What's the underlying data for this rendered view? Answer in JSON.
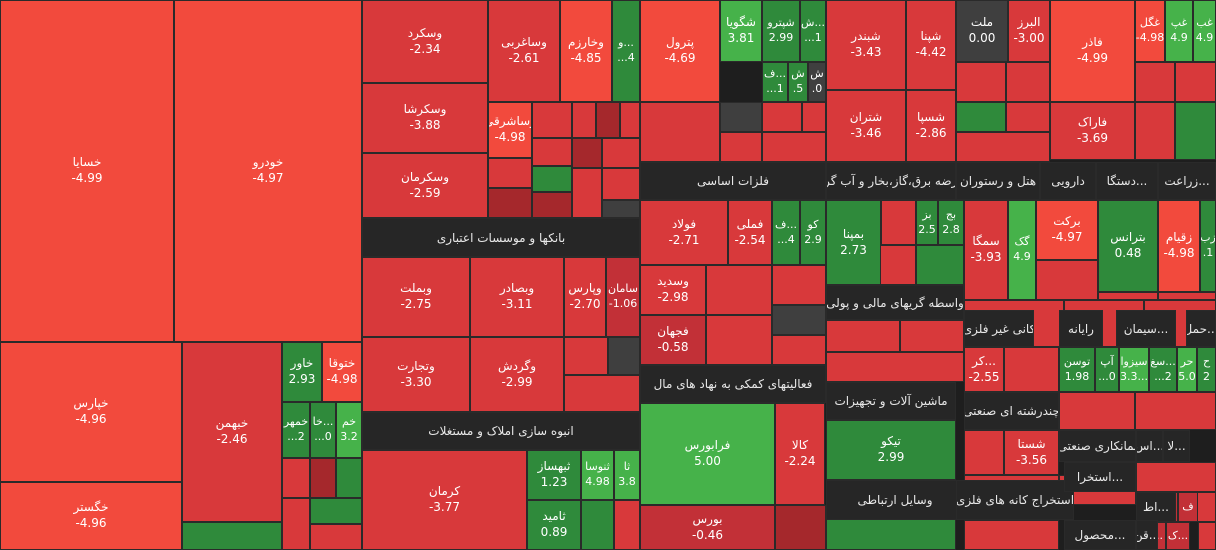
{
  "chart_data": {
    "type": "heatmap",
    "colors": {
      "strong_neg": "#f24a3d",
      "neg": "#d8393b",
      "mid_neg": "#c23037",
      "dark_neg": "#a5282c",
      "neutral": "#3f3f3f",
      "pos": "#2f8a3b",
      "strong_pos": "#46b24a",
      "header": "#262626"
    },
    "sectors": [
      "بانکها و موسسات اعتباری",
      "فلزات اساسی",
      "انبوه سازی املاک و مستغلات",
      "فعالیتهای کمکی به نهاد های مال",
      "ماشین آلات و تجهیزات",
      "وسایل ارتباطی",
      "واسطه گریهای مالی و پولی",
      "عرضه برق،گاز،بخار و آب گرم",
      "هتل و رستوران",
      "دارویی",
      "دستگا...",
      "زراعت...",
      "کانی غیر فلزی",
      "رایانه",
      "سیمان...",
      "حمل...",
      "چندرشته ای صنعتی",
      "استخراج کانه های فلزی",
      "بمانکاری صنعتی",
      "اس...",
      "لا...",
      "استخرا...",
      "اط...",
      "محصول...",
      "قن..."
    ],
    "tiles": [
      {
        "label": "خسایا",
        "value": "-4.99"
      },
      {
        "label": "خودرو",
        "value": "-4.97"
      },
      {
        "label": "خپارس",
        "value": "-4.96"
      },
      {
        "label": "خگستر",
        "value": "-4.96"
      },
      {
        "label": "خبهمن",
        "value": "-2.46"
      },
      {
        "label": "خاور",
        "value": "2.93"
      },
      {
        "label": "ختوقا",
        "value": "-4.98"
      },
      {
        "label": "خمهر",
        "value": "...2"
      },
      {
        "label": "خا...",
        "value": "...0"
      },
      {
        "label": "خم",
        "value": "3.2"
      },
      {
        "label": "وسکرد",
        "value": "-2.34"
      },
      {
        "label": "وسکرشا",
        "value": "-3.88"
      },
      {
        "label": "وسکرمان",
        "value": "-2.59"
      },
      {
        "label": "وساغربی",
        "value": "-2.61"
      },
      {
        "label": "وخارزم",
        "value": "-4.85"
      },
      {
        "label": "و...",
        "value": "...4"
      },
      {
        "label": "وساشرقی",
        "value": "-4.98"
      },
      {
        "label": "وبملت",
        "value": "-2.75"
      },
      {
        "label": "وبصادر",
        "value": "-3.11"
      },
      {
        "label": "وپارس",
        "value": "-2.70"
      },
      {
        "label": "سامان",
        "value": "-1.06"
      },
      {
        "label": "وتجارت",
        "value": "-3.30"
      },
      {
        "label": "وگردش",
        "value": "-2.99"
      },
      {
        "label": "کرمان",
        "value": "-3.77"
      },
      {
        "label": "ثبهساز",
        "value": "1.23"
      },
      {
        "label": "ثنوسا",
        "value": "4.98"
      },
      {
        "label": "ثا",
        "value": "3.8"
      },
      {
        "label": "ثامید",
        "value": "0.89"
      },
      {
        "label": "پترول",
        "value": "-4.69"
      },
      {
        "label": "شگویا",
        "value": "3.81"
      },
      {
        "label": "شپترو",
        "value": "2.99"
      },
      {
        "label": "ش...",
        "value": "...1"
      },
      {
        "label": "ف...",
        "value": "...1"
      },
      {
        "label": "ش",
        "value": ".5"
      },
      {
        "label": "ش",
        "value": ".0"
      },
      {
        "label": "شبندر",
        "value": "-3.43"
      },
      {
        "label": "شپنا",
        "value": "-4.42"
      },
      {
        "label": "شتران",
        "value": "-3.46"
      },
      {
        "label": "شسپا",
        "value": "-2.86"
      },
      {
        "label": "ملت",
        "value": "0.00"
      },
      {
        "label": "البرز",
        "value": "-3.00"
      },
      {
        "label": "فاذر",
        "value": "-4.99"
      },
      {
        "label": "فاراک",
        "value": "-3.69"
      },
      {
        "label": "غگل",
        "value": "-4.98"
      },
      {
        "label": "غپ",
        "value": "4.9"
      },
      {
        "label": "غب",
        "value": "4.9"
      },
      {
        "label": "فولاد",
        "value": "-2.71"
      },
      {
        "label": "فملی",
        "value": "-2.54"
      },
      {
        "label": "وسدید",
        "value": "-2.98"
      },
      {
        "label": "فجهان",
        "value": "-0.58"
      },
      {
        "label": "ف...",
        "value": "...4"
      },
      {
        "label": "کو",
        "value": "2.9"
      },
      {
        "label": "بمپنا",
        "value": "2.73"
      },
      {
        "label": "بز",
        "value": "2.5"
      },
      {
        "label": "بج",
        "value": "2.8"
      },
      {
        "label": "سمگا",
        "value": "-3.93"
      },
      {
        "label": "گک",
        "value": "4.9"
      },
      {
        "label": "برکت",
        "value": "-4.97"
      },
      {
        "label": "بترانس",
        "value": "0.48"
      },
      {
        "label": "زقیام",
        "value": "-4.98"
      },
      {
        "label": "زب",
        "value": ".1"
      },
      {
        "label": "فرابورس",
        "value": "5.00"
      },
      {
        "label": "کالا",
        "value": "-2.24"
      },
      {
        "label": "بورس",
        "value": "-0.46"
      },
      {
        "label": "تیکو",
        "value": "2.99"
      },
      {
        "label": "کر...",
        "value": "-2.55"
      },
      {
        "label": "توسن",
        "value": "1.98"
      },
      {
        "label": "آپ",
        "value": "...0"
      },
      {
        "label": "سیزوا",
        "value": "3.3..."
      },
      {
        "label": "سغ...",
        "value": "...2"
      },
      {
        "label": "حر",
        "value": "5.0"
      },
      {
        "label": "ح",
        "value": "2"
      },
      {
        "label": "شستا",
        "value": "-3.56"
      },
      {
        "label": "م",
        "value": ""
      },
      {
        "label": "ف",
        "value": ""
      },
      {
        "label": "قن...",
        "value": ""
      },
      {
        "label": "ک...",
        "value": ""
      }
    ]
  }
}
